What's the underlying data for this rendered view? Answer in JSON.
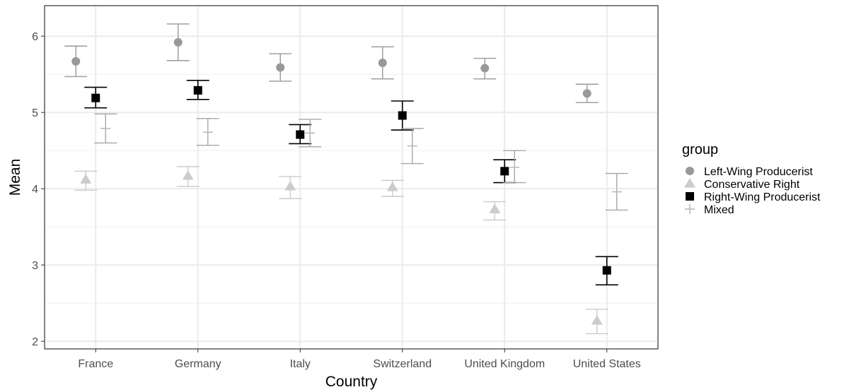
{
  "chart_data": {
    "type": "scatter",
    "subtype": "dot-with-error-bars",
    "xlabel": "Country",
    "ylabel": "Mean",
    "ylim": [
      1.9,
      6.4
    ],
    "yticks": [
      2,
      3,
      4,
      5,
      6
    ],
    "categories": [
      "France",
      "Germany",
      "Italy",
      "Switzerland",
      "United Kingdom",
      "United States"
    ],
    "legend": {
      "title": "group",
      "position": "right"
    },
    "grid": true,
    "series": [
      {
        "name": "Left-Wing Producerist",
        "marker": "circle",
        "color": "#999999",
        "values": [
          5.67,
          5.92,
          5.59,
          5.65,
          5.58,
          5.25
        ],
        "lower": [
          5.47,
          5.68,
          5.41,
          5.44,
          5.44,
          5.13
        ],
        "upper": [
          5.87,
          6.16,
          5.77,
          5.86,
          5.71,
          5.37
        ]
      },
      {
        "name": "Conservative Right",
        "marker": "triangle",
        "color": "#cccccc",
        "values": [
          4.12,
          4.17,
          4.03,
          4.02,
          3.73,
          2.27
        ],
        "lower": [
          3.98,
          4.03,
          3.87,
          3.9,
          3.59,
          2.1
        ],
        "upper": [
          4.23,
          4.29,
          4.16,
          4.11,
          3.83,
          2.42
        ]
      },
      {
        "name": "Right-Wing Producerist",
        "marker": "square",
        "color": "#000000",
        "values": [
          5.19,
          5.29,
          4.71,
          4.96,
          4.23,
          2.93
        ],
        "lower": [
          5.06,
          5.17,
          4.59,
          4.77,
          4.08,
          2.74
        ],
        "upper": [
          5.33,
          5.42,
          4.84,
          5.15,
          4.38,
          3.11
        ]
      },
      {
        "name": "Mixed",
        "marker": "plus",
        "color": "#b3b3b3",
        "values": [
          4.79,
          4.74,
          4.73,
          4.56,
          4.28,
          3.96
        ],
        "lower": [
          4.6,
          4.57,
          4.55,
          4.33,
          4.08,
          3.72
        ],
        "upper": [
          4.98,
          4.92,
          4.91,
          4.79,
          4.5,
          4.2
        ]
      }
    ]
  }
}
